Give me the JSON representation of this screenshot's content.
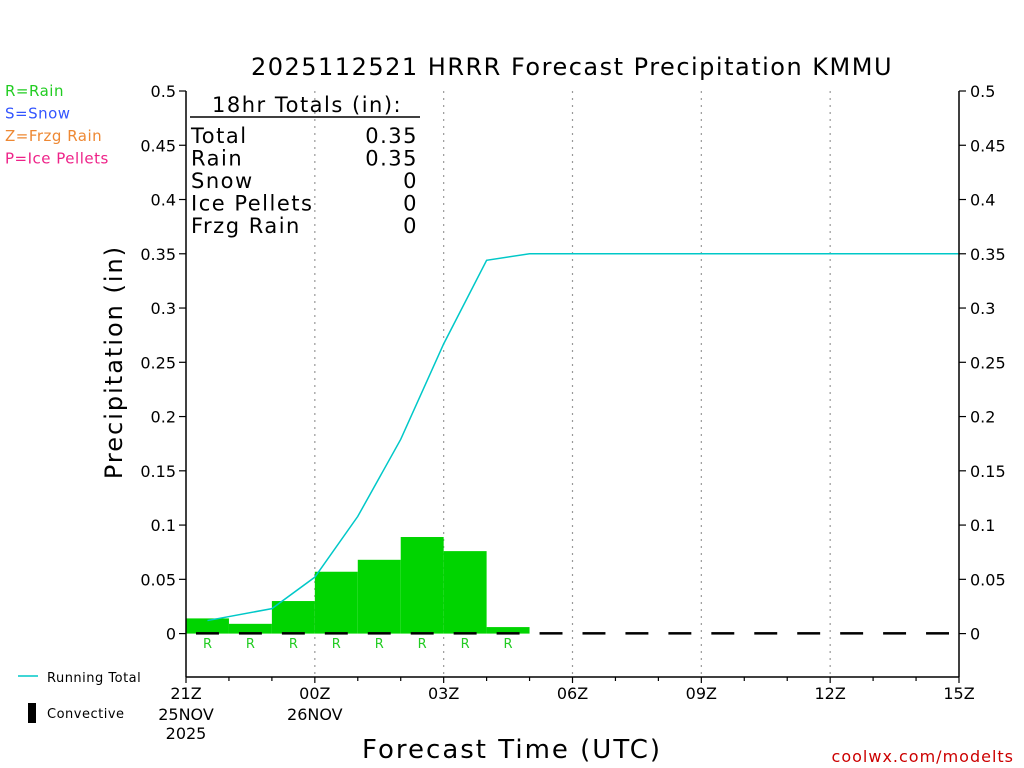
{
  "chart_data": {
    "type": "bar",
    "title": "2025112521 HRRR Forecast Precipitation KMMU",
    "xlabel": "Forecast Time (UTC)",
    "ylabel": "Precipitation (in)",
    "ylim": [
      -0.04,
      0.5
    ],
    "xlim": [
      0,
      18
    ],
    "y_ticks": [
      "0",
      "0.05",
      "0.1",
      "0.15",
      "0.2",
      "0.25",
      "0.3",
      "0.35",
      "0.4",
      "0.45",
      "0.5"
    ],
    "y_tick_values": [
      0,
      0.05,
      0.1,
      0.15,
      0.2,
      0.25,
      0.3,
      0.35,
      0.4,
      0.45,
      0.5
    ],
    "x_ticks": [
      {
        "hour": 0,
        "label": "21Z",
        "date": "25NOV",
        "year": "2025"
      },
      {
        "hour": 3,
        "label": "00Z",
        "date": "26NOV",
        "year": ""
      },
      {
        "hour": 6,
        "label": "03Z",
        "date": "",
        "year": ""
      },
      {
        "hour": 9,
        "label": "06Z",
        "date": "",
        "year": ""
      },
      {
        "hour": 12,
        "label": "09Z",
        "date": "",
        "year": ""
      },
      {
        "hour": 15,
        "label": "12Z",
        "date": "",
        "year": ""
      },
      {
        "hour": 18,
        "label": "15Z",
        "date": "",
        "year": ""
      }
    ],
    "grid_hours": [
      3,
      6,
      9,
      12,
      15
    ],
    "hourly_bars": {
      "hours": [
        1,
        2,
        3,
        4,
        5,
        6,
        7,
        8
      ],
      "values": [
        0.014,
        0.009,
        0.03,
        0.057,
        0.068,
        0.089,
        0.076,
        0.006
      ],
      "type_codes": [
        "R",
        "R",
        "R",
        "R",
        "R",
        "R",
        "R",
        "R"
      ],
      "color": "#00d400"
    },
    "convective": {
      "hours": [
        1,
        2,
        3,
        4,
        5,
        6,
        7,
        8,
        9,
        10,
        11,
        12,
        13,
        14,
        15,
        16,
        17,
        18
      ],
      "values": [
        0,
        0,
        0,
        0,
        0,
        0,
        0,
        0,
        0,
        0,
        0,
        0,
        0,
        0,
        0,
        0,
        0,
        0
      ]
    },
    "running_total": {
      "name": "Running Total",
      "x": [
        0.5,
        2,
        3,
        4,
        5,
        6,
        7,
        8,
        18
      ],
      "y": [
        0.012,
        0.023,
        0.052,
        0.108,
        0.179,
        0.267,
        0.344,
        0.35,
        0.35
      ],
      "color": "#00c8c8"
    },
    "totals_box": {
      "heading": "18hr Totals (in):",
      "rows": [
        {
          "label": "Total",
          "value": "0.35"
        },
        {
          "label": "Rain",
          "value": "0.35"
        },
        {
          "label": "Snow",
          "value": "0"
        },
        {
          "label": "Ice Pellets",
          "value": "0"
        },
        {
          "label": "Frzg Rain",
          "value": "0"
        }
      ]
    },
    "type_legend": [
      {
        "text": "R=Rain",
        "color": "#22cc22"
      },
      {
        "text": "S=Snow",
        "color": "#3355ff"
      },
      {
        "text": "Z=Frzg Rain",
        "color": "#ee8833"
      },
      {
        "text": "P=Ice Pellets",
        "color": "#ee2288"
      }
    ],
    "bottom_legend": [
      {
        "text": "Running Total",
        "kind": "line",
        "color": "#00c8c8"
      },
      {
        "text": "Convective",
        "kind": "bar",
        "color": "#000000"
      }
    ],
    "credit": "coolwx.com/modelts",
    "credit_color": "#cc0000"
  }
}
